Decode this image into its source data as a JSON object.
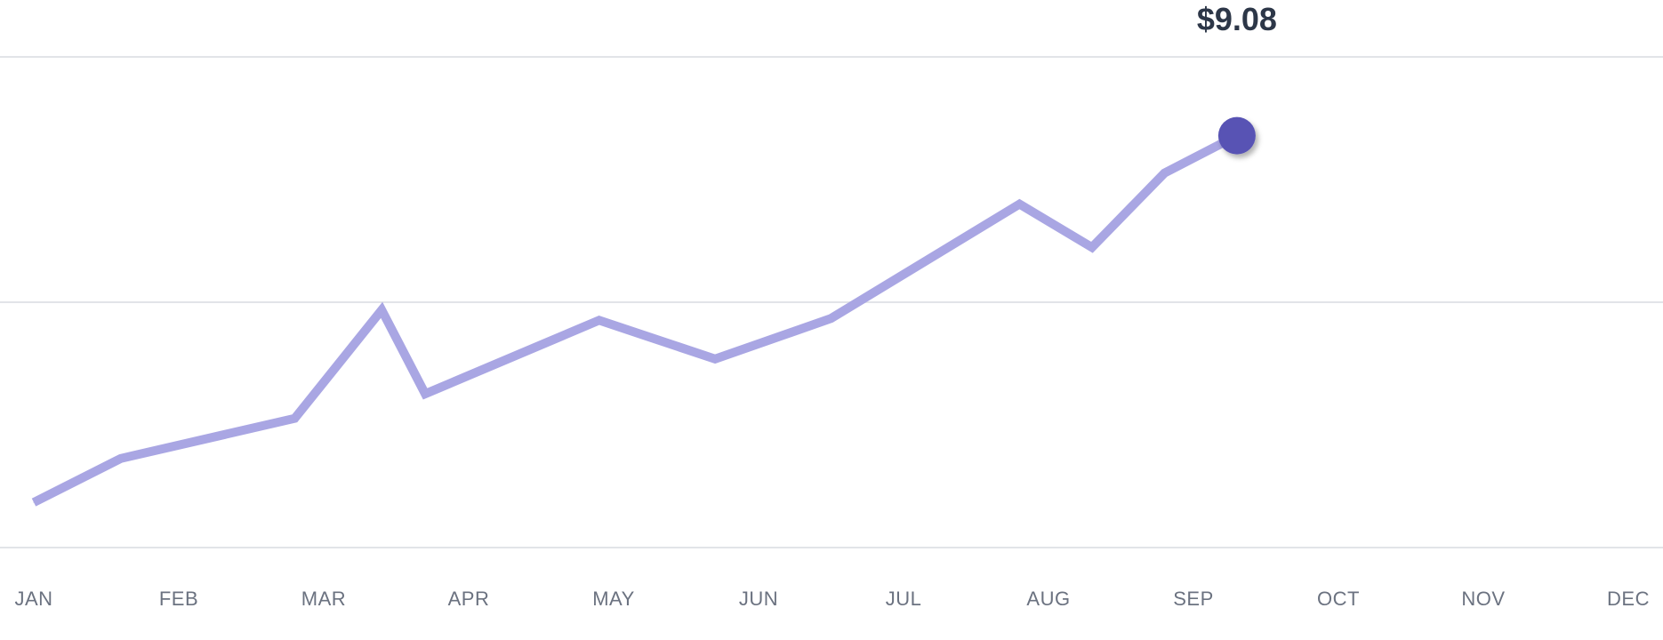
{
  "chart_data": {
    "type": "line",
    "categories": [
      "JAN",
      "FEB",
      "MAR",
      "APR",
      "MAY",
      "JUN",
      "JUL",
      "AUG",
      "SEP",
      "OCT",
      "NOV",
      "DEC"
    ],
    "series": [
      {
        "x": [
          0.0,
          0.6,
          1.8,
          2.4,
          2.7,
          3.9,
          4.7,
          5.5,
          6.8,
          7.3,
          7.8,
          8.3
        ],
        "values": [
          3.4,
          4.08,
          4.7,
          6.38,
          5.08,
          6.22,
          5.62,
          6.25,
          8.02,
          7.35,
          8.5,
          9.08
        ]
      }
    ],
    "highlight": {
      "label": "$9.08",
      "value": 9.08,
      "x": 8.3
    },
    "ylim": [
      2.7,
      10.3
    ],
    "gridlines_y": [
      2.7,
      6.5,
      10.3
    ],
    "grid": true,
    "legend": "none",
    "colors": {
      "line": "#a9a6e3",
      "marker": "#5853b4",
      "tick_text": "#6b7280",
      "value_text": "#2d3748",
      "grid": "#e2e4e8"
    }
  }
}
